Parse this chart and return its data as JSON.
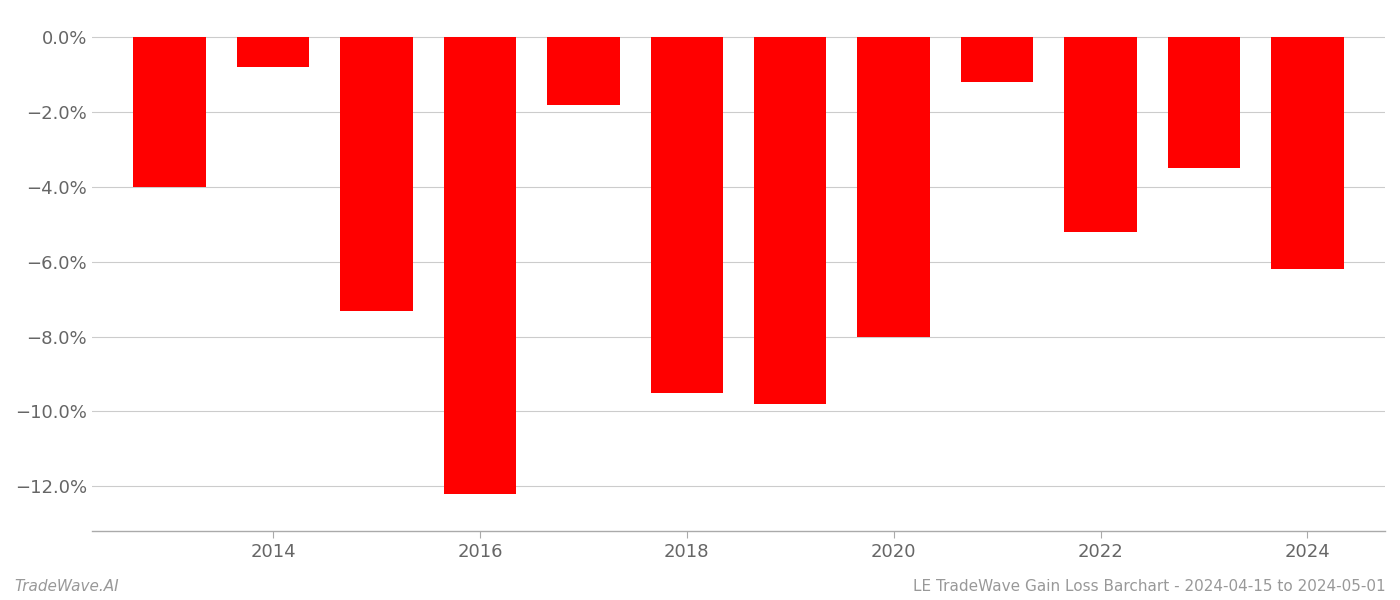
{
  "years": [
    2013,
    2014,
    2015,
    2016,
    2017,
    2018,
    2019,
    2020,
    2021,
    2022,
    2023,
    2024
  ],
  "values": [
    -0.04,
    -0.008,
    -0.073,
    -0.122,
    -0.018,
    -0.095,
    -0.098,
    -0.08,
    -0.012,
    -0.052,
    -0.035,
    -0.062
  ],
  "bar_color": "#ff0000",
  "background_color": "#ffffff",
  "grid_color": "#cccccc",
  "tick_label_color": "#666666",
  "ylim": [
    -0.132,
    0.006
  ],
  "yticks": [
    0.0,
    -0.02,
    -0.04,
    -0.06,
    -0.08,
    -0.1,
    -0.12
  ],
  "xticks": [
    2014,
    2016,
    2018,
    2020,
    2022,
    2024
  ],
  "footer_left": "TradeWave.AI",
  "footer_right": "LE TradeWave Gain Loss Barchart - 2024-04-15 to 2024-05-01",
  "footer_color": "#999999",
  "footer_fontsize": 11,
  "bar_width": 0.7,
  "tick_fontsize": 13
}
